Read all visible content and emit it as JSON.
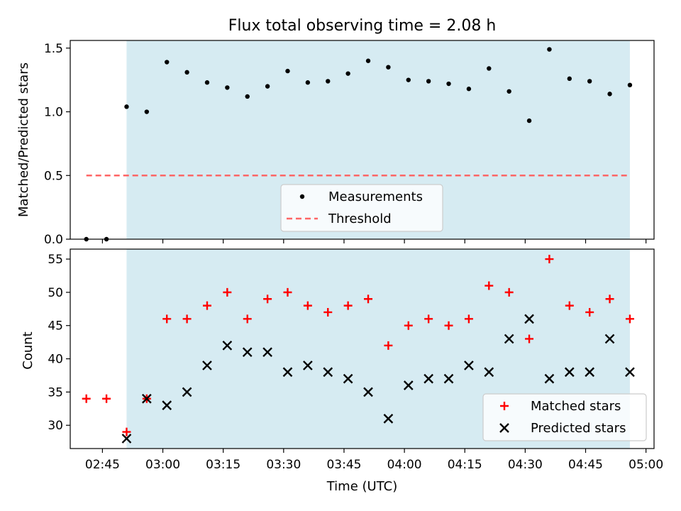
{
  "colors": {
    "shade": "#add8e6",
    "shade_opacity": 0.5,
    "measure": "#000000",
    "threshold": "#ff6666",
    "matched": "#ff0000",
    "predicted": "#000000"
  },
  "chart_data": [
    {
      "type": "scatter",
      "title": "Flux total observing time = 2.08 h",
      "xlabel": "",
      "ylabel": "Matched/Predicted stars",
      "xlim": [
        "02:37",
        "05:02"
      ],
      "ylim": [
        0.0,
        1.56
      ],
      "ytick_labels": [
        "0.0",
        "0.5",
        "1.0",
        "1.5"
      ],
      "ytick_values": [
        0.0,
        0.5,
        1.0,
        1.5
      ],
      "shaded_span": [
        "02:51",
        "04:56"
      ],
      "grid": false,
      "legend_position": "lower-center",
      "series": [
        {
          "name": "Measurements",
          "marker": "dot",
          "x": [
            "02:41",
            "02:46",
            "02:51",
            "02:56",
            "03:01",
            "03:06",
            "03:11",
            "03:16",
            "03:21",
            "03:26",
            "03:31",
            "03:36",
            "03:41",
            "03:46",
            "03:51",
            "03:56",
            "04:01",
            "04:06",
            "04:11",
            "04:16",
            "04:21",
            "04:26",
            "04:31",
            "04:36",
            "04:41",
            "04:46",
            "04:51",
            "04:56"
          ],
          "y": [
            0.0,
            0.0,
            1.04,
            1.0,
            1.39,
            1.31,
            1.23,
            1.19,
            1.12,
            1.2,
            1.32,
            1.23,
            1.24,
            1.3,
            1.4,
            1.35,
            1.25,
            1.24,
            1.22,
            1.18,
            1.34,
            1.16,
            0.93,
            1.49,
            1.26,
            1.24,
            1.14,
            1.21
          ]
        },
        {
          "name": "Threshold",
          "marker": "dashed-line",
          "x": [
            "02:41",
            "04:56"
          ],
          "y": [
            0.5,
            0.5
          ]
        }
      ]
    },
    {
      "type": "scatter",
      "title": "",
      "xlabel": "Time (UTC)",
      "ylabel": "Count",
      "xlim": [
        "02:37",
        "05:02"
      ],
      "ylim": [
        26.5,
        56.5
      ],
      "ytick_labels": [
        "30",
        "35",
        "40",
        "45",
        "50",
        "55"
      ],
      "ytick_values": [
        30,
        35,
        40,
        45,
        50,
        55
      ],
      "xtick_labels": [
        "02:45",
        "03:00",
        "03:15",
        "03:30",
        "03:45",
        "04:00",
        "04:15",
        "04:30",
        "04:45",
        "05:00"
      ],
      "xtick_values": [
        "02:45",
        "03:00",
        "03:15",
        "03:30",
        "03:45",
        "04:00",
        "04:15",
        "04:30",
        "04:45",
        "05:00"
      ],
      "shaded_span": [
        "02:51",
        "04:56"
      ],
      "grid": false,
      "legend_position": "lower-right",
      "series": [
        {
          "name": "Matched stars",
          "marker": "plus",
          "x": [
            "02:41",
            "02:46",
            "02:51",
            "02:56",
            "03:01",
            "03:06",
            "03:11",
            "03:16",
            "03:21",
            "03:26",
            "03:31",
            "03:36",
            "03:41",
            "03:46",
            "03:51",
            "03:56",
            "04:01",
            "04:06",
            "04:11",
            "04:16",
            "04:21",
            "04:26",
            "04:31",
            "04:36",
            "04:41",
            "04:46",
            "04:51",
            "04:56"
          ],
          "y": [
            34,
            34,
            29,
            34,
            46,
            46,
            48,
            50,
            46,
            49,
            50,
            48,
            47,
            48,
            49,
            42,
            45,
            46,
            45,
            46,
            51,
            50,
            43,
            55,
            48,
            47,
            49,
            46
          ]
        },
        {
          "name": "Predicted stars",
          "marker": "x",
          "x": [
            "02:51",
            "02:56",
            "03:01",
            "03:06",
            "03:11",
            "03:16",
            "03:21",
            "03:26",
            "03:31",
            "03:36",
            "03:41",
            "03:46",
            "03:51",
            "03:56",
            "04:01",
            "04:06",
            "04:11",
            "04:16",
            "04:21",
            "04:26",
            "04:31",
            "04:36",
            "04:41",
            "04:46",
            "04:51",
            "04:56"
          ],
          "y": [
            28,
            34,
            33,
            35,
            39,
            42,
            41,
            41,
            38,
            39,
            38,
            37,
            35,
            31,
            36,
            37,
            37,
            39,
            38,
            43,
            46,
            37,
            38,
            38,
            43,
            38
          ]
        }
      ]
    }
  ]
}
